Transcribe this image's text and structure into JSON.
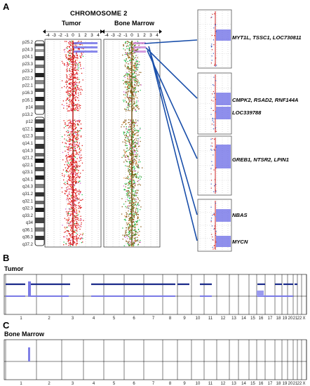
{
  "panels": {
    "a_letter": "A",
    "b_letter": "B",
    "c_letter": "C"
  },
  "panel_a": {
    "title": "CHROMOSOME 2",
    "track_labels": [
      "Tumor",
      "Bone Marrow"
    ],
    "axis_ticks": [
      "-4",
      "-3",
      "-2",
      "-1",
      "0",
      "1",
      "2",
      "3",
      "4"
    ],
    "bands": [
      "p25.2",
      "p24.3",
      "p24.1",
      "p23.3",
      "p23.2",
      "p22.3",
      "p22.1",
      "p16.3",
      "p16.1",
      "p14",
      "p13.2",
      "p12",
      "q12.1",
      "q12.3",
      "q14.1",
      "q14.3",
      "q21.2",
      "q22.1",
      "q23.1",
      "q24.1",
      "q24.3",
      "q31.2",
      "q32.1",
      "q32.3",
      "q33.2",
      "q34",
      "q36.1",
      "q36.3",
      "q37.2"
    ],
    "zoom_boxes": [
      {
        "genes": [
          "MYT1L, TSSC1, LOC730811"
        ]
      },
      {
        "genes": [
          "CMPK2, RSAD2, RNF144A",
          "LOC339788"
        ]
      },
      {
        "genes": [
          "GREB1, NTSR2, LPIN1"
        ]
      },
      {
        "genes": [
          "NBAS",
          "MYCN"
        ]
      }
    ],
    "colors": {
      "tumor_dots": "#e01818",
      "marrow_dots": "#8a5a14",
      "marrow_green": "#19c24a",
      "highlight": "#6a6ae6",
      "connector": "#1a4faa"
    }
  },
  "panel_b": {
    "label": "Tumor",
    "chromosomes": [
      "1",
      "2",
      "3",
      "4",
      "5",
      "6",
      "7",
      "8",
      "9",
      "10",
      "11",
      "12",
      "13",
      "14",
      "15",
      "16",
      "17",
      "18",
      "19",
      "20",
      "21",
      "22",
      "X"
    ]
  },
  "panel_c": {
    "label": "Bone Marrow",
    "chromosomes": [
      "1",
      "2",
      "3",
      "4",
      "5",
      "6",
      "7",
      "8",
      "9",
      "10",
      "11",
      "12",
      "13",
      "14",
      "15",
      "16",
      "17",
      "18",
      "19",
      "20",
      "21",
      "22",
      "X"
    ]
  }
}
